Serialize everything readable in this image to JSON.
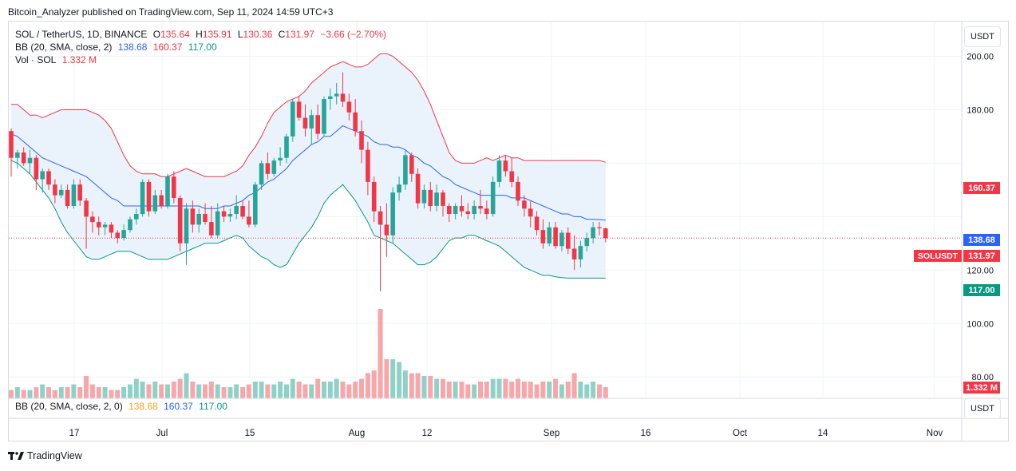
{
  "header": {
    "publisher_line": "Bitcoin_Analyzer published on TradingView.com, Sep 11, 2024 14:59 UTC+3"
  },
  "legend": {
    "symbol": "SOL / TetherUS, 1D, BINANCE",
    "o_label": "O",
    "o_value": "135.64",
    "h_label": "H",
    "h_value": "135.91",
    "l_label": "L",
    "l_value": "130.36",
    "c_label": "C",
    "c_value": "131.97",
    "change": "−3.66 (−2.70%)",
    "bb_label": "BB (20, SMA, close, 2)",
    "bb_basis": "138.68",
    "bb_upper": "160.37",
    "bb_lower": "117.00",
    "vol_label": "Vol · SOL",
    "vol_value": "1.332 M"
  },
  "lower_pane": {
    "legend_label": "BB (20, SMA, close, 2, 0)",
    "basis": "138.68",
    "upper": "160.37",
    "lower": "117.00"
  },
  "currency_button": "USDT",
  "footer": {
    "brand": "TradingView"
  },
  "colors": {
    "up": "#26a69a",
    "down": "#f23645",
    "vol_up": "#8fd1c7",
    "vol_down": "#f7a6aa",
    "bb_basis": "#2962ff",
    "bb_upper": "#f23645",
    "bb_lower": "#089981",
    "bb_fill": "#eaf2fb"
  },
  "chart_data": {
    "type": "candlestick",
    "symbol": "SOLUSDT",
    "y_ticks": [
      "200.00",
      "180.00",
      "120.00",
      "100.00",
      "80.00"
    ],
    "x_ticks": [
      "17",
      "Jul",
      "15",
      "Aug",
      "12",
      "Sep",
      "16",
      "Oct",
      "14",
      "Nov"
    ],
    "price_badges": [
      {
        "label": "",
        "value": "160.37",
        "color": "#f23645"
      },
      {
        "label": "",
        "value": "138.68",
        "color": "#2962ff"
      },
      {
        "label": "SOLUSDT",
        "value": "131.97",
        "color": "#f23645"
      },
      {
        "label": "",
        "value": "117.00",
        "color": "#089981"
      },
      {
        "label": "",
        "value": "1.332 M",
        "color": "#f23645"
      }
    ],
    "y_range": [
      72,
      213
    ],
    "candles": [
      [
        172.0,
        173.0,
        155.0,
        162.0
      ],
      [
        162.0,
        165.0,
        158.0,
        164.0
      ],
      [
        164.0,
        166.0,
        159.0,
        160.0
      ],
      [
        160.0,
        165.0,
        156.0,
        162.0
      ],
      [
        162.0,
        163.0,
        150.0,
        154.0
      ],
      [
        154.0,
        158.0,
        149.0,
        157.0
      ],
      [
        157.0,
        158.0,
        150.0,
        152.0
      ],
      [
        152.0,
        154.0,
        145.0,
        148.0
      ],
      [
        148.0,
        152.0,
        147.0,
        150.0
      ],
      [
        150.0,
        152.0,
        143.0,
        144.0
      ],
      [
        144.0,
        154.0,
        143.0,
        152.0
      ],
      [
        152.0,
        154.0,
        144.0,
        146.0
      ],
      [
        146.0,
        147.0,
        128.0,
        140.0
      ],
      [
        140.0,
        142.0,
        134.0,
        138.0
      ],
      [
        138.0,
        140.0,
        133.0,
        136.0
      ],
      [
        136.0,
        138.0,
        133.0,
        137.0
      ],
      [
        137.0,
        138.0,
        132.0,
        134.0
      ],
      [
        134.0,
        135.0,
        130.0,
        132.0
      ],
      [
        132.0,
        137.0,
        131.0,
        135.0
      ],
      [
        135.0,
        140.0,
        134.0,
        139.0
      ],
      [
        139.0,
        143.0,
        137.0,
        141.0
      ],
      [
        141.0,
        154.0,
        140.0,
        153.0
      ],
      [
        153.0,
        154.0,
        140.0,
        142.0
      ],
      [
        142.0,
        150.0,
        141.0,
        148.0
      ],
      [
        148.0,
        150.0,
        143.0,
        144.0
      ],
      [
        144.0,
        156.0,
        143.0,
        155.0
      ],
      [
        155.0,
        157.0,
        145.0,
        147.0
      ],
      [
        147.0,
        148.0,
        127.0,
        130.0
      ],
      [
        130.0,
        145.0,
        122.0,
        143.0
      ],
      [
        143.0,
        146.0,
        134.0,
        137.0
      ],
      [
        137.0,
        143.0,
        134.0,
        141.0
      ],
      [
        141.0,
        145.0,
        137.0,
        138.0
      ],
      [
        138.0,
        144.0,
        132.0,
        133.0
      ],
      [
        133.0,
        145.0,
        132.0,
        142.0
      ],
      [
        142.0,
        144.0,
        138.0,
        140.0
      ],
      [
        140.0,
        143.0,
        138.0,
        141.0
      ],
      [
        141.0,
        148.0,
        139.0,
        144.0
      ],
      [
        144.0,
        146.0,
        139.0,
        140.0
      ],
      [
        140.0,
        146.0,
        136.0,
        137.0
      ],
      [
        137.0,
        153.0,
        136.0,
        152.0
      ],
      [
        152.0,
        161.0,
        150.0,
        160.0
      ],
      [
        160.0,
        164.0,
        154.0,
        156.0
      ],
      [
        156.0,
        162.0,
        155.0,
        161.0
      ],
      [
        161.0,
        166.0,
        159.0,
        162.0
      ],
      [
        162.0,
        171.0,
        160.0,
        170.0
      ],
      [
        170.0,
        184.0,
        168.0,
        183.0
      ],
      [
        183.0,
        185.0,
        176.0,
        177.0
      ],
      [
        177.0,
        182.0,
        170.0,
        173.0
      ],
      [
        173.0,
        180.0,
        167.0,
        178.0
      ],
      [
        178.0,
        182.0,
        169.0,
        171.0
      ],
      [
        171.0,
        185.0,
        170.0,
        184.0
      ],
      [
        184.0,
        188.0,
        180.0,
        185.0
      ],
      [
        185.0,
        190.0,
        182.0,
        186.0
      ],
      [
        186.0,
        194.0,
        181.0,
        183.0
      ],
      [
        183.0,
        186.0,
        176.0,
        179.0
      ],
      [
        179.0,
        184.0,
        170.0,
        172.0
      ],
      [
        172.0,
        176.0,
        160.0,
        165.0
      ],
      [
        165.0,
        168.0,
        148.0,
        153.0
      ],
      [
        153.0,
        155.0,
        138.0,
        142.0
      ],
      [
        142.0,
        144.0,
        112.0,
        137.0
      ],
      [
        137.0,
        145.0,
        125.0,
        133.0
      ],
      [
        133.0,
        151.0,
        130.0,
        149.0
      ],
      [
        149.0,
        155.0,
        146.0,
        152.0
      ],
      [
        152.0,
        165.0,
        150.0,
        163.0
      ],
      [
        163.0,
        164.0,
        153.0,
        156.0
      ],
      [
        156.0,
        158.0,
        143.0,
        145.0
      ],
      [
        145.0,
        152.0,
        143.0,
        150.0
      ],
      [
        150.0,
        153.0,
        142.0,
        144.0
      ],
      [
        144.0,
        152.0,
        142.0,
        149.0
      ],
      [
        149.0,
        150.0,
        140.0,
        144.0
      ],
      [
        144.0,
        145.0,
        138.0,
        141.0
      ],
      [
        141.0,
        145.0,
        139.0,
        144.0
      ],
      [
        144.0,
        148.0,
        140.0,
        142.0
      ],
      [
        142.0,
        145.0,
        139.0,
        141.0
      ],
      [
        141.0,
        146.0,
        139.0,
        144.0
      ],
      [
        144.0,
        150.0,
        141.0,
        143.0
      ],
      [
        143.0,
        146.0,
        139.0,
        141.0
      ],
      [
        141.0,
        155.0,
        140.0,
        153.0
      ],
      [
        153.0,
        163.0,
        151.0,
        161.0
      ],
      [
        161.0,
        163.0,
        155.0,
        157.0
      ],
      [
        157.0,
        162.0,
        151.0,
        153.0
      ],
      [
        153.0,
        155.0,
        144.0,
        146.0
      ],
      [
        146.0,
        148.0,
        140.0,
        143.0
      ],
      [
        143.0,
        146.0,
        136.0,
        140.0
      ],
      [
        140.0,
        142.0,
        133.0,
        135.0
      ],
      [
        135.0,
        139.0,
        128.0,
        130.0
      ],
      [
        130.0,
        138.0,
        129.0,
        136.0
      ],
      [
        136.0,
        138.0,
        128.0,
        129.0
      ],
      [
        129.0,
        135.0,
        127.0,
        134.0
      ],
      [
        134.0,
        136.0,
        126.0,
        128.0
      ],
      [
        128.0,
        133.0,
        120.0,
        124.0
      ],
      [
        124.0,
        131.0,
        121.0,
        129.0
      ],
      [
        129.0,
        134.0,
        127.0,
        132.0
      ],
      [
        132.0,
        138.0,
        130.0,
        136.0
      ],
      [
        136.0,
        138.0,
        133.0,
        135.64
      ],
      [
        135.64,
        135.91,
        130.36,
        131.97
      ]
    ],
    "volume": [
      3,
      4,
      3,
      3,
      4,
      5,
      4,
      3,
      4,
      4,
      5,
      4,
      8,
      5,
      4,
      4,
      3,
      3,
      4,
      5,
      7,
      6,
      5,
      6,
      5,
      5,
      6,
      7,
      9,
      6,
      5,
      5,
      6,
      5,
      4,
      4,
      5,
      4,
      5,
      6,
      6,
      5,
      5,
      6,
      5,
      7,
      6,
      5,
      5,
      7,
      6,
      6,
      7,
      6,
      5,
      6,
      7,
      9,
      10,
      32,
      14,
      14,
      13,
      10,
      9,
      9,
      8,
      8,
      7,
      7,
      6,
      6,
      6,
      5,
      5,
      6,
      6,
      7,
      7,
      7,
      6,
      7,
      6,
      6,
      5,
      6,
      6,
      7,
      5,
      6,
      9,
      6,
      5,
      6,
      5,
      4
    ],
    "vol_range": [
      0,
      32
    ],
    "bb_upper": [
      182,
      182,
      180,
      178,
      178,
      177,
      178,
      179,
      180,
      180,
      180,
      180,
      180,
      179,
      178,
      176,
      173,
      168,
      163,
      159,
      157,
      156,
      156,
      156,
      155,
      155,
      156,
      157,
      158,
      157,
      156,
      155,
      155,
      155,
      155,
      156,
      157,
      159,
      163,
      166,
      170,
      175,
      179,
      181,
      183,
      184,
      185,
      187,
      190,
      192,
      194,
      196,
      197,
      198,
      197,
      196,
      196,
      197,
      199,
      201,
      201,
      200,
      198,
      196,
      194,
      191,
      187,
      182,
      176,
      170,
      164,
      161,
      160,
      160,
      160,
      161,
      162,
      161,
      162,
      163,
      162,
      162,
      161,
      161,
      161,
      161,
      161,
      161,
      161,
      161,
      161,
      161,
      161,
      161,
      161,
      160.37
    ],
    "bb_basis": [
      171,
      170,
      168,
      166,
      164,
      162,
      161,
      160,
      159,
      158,
      157,
      156,
      155,
      153,
      151,
      149,
      147,
      146,
      144,
      144,
      144,
      144,
      144,
      144,
      144,
      144,
      144,
      144,
      144,
      144,
      144,
      143,
      143,
      143,
      144,
      144,
      145,
      146,
      148,
      149,
      151,
      153,
      154,
      156,
      158,
      161,
      163,
      165,
      167,
      168,
      170,
      170,
      172,
      174,
      173,
      172,
      171,
      170,
      168,
      167,
      167,
      166,
      166,
      165,
      163,
      162,
      160,
      159,
      157,
      155,
      154,
      152,
      151,
      150,
      149,
      148,
      148,
      148,
      148,
      148,
      147,
      147,
      147,
      146,
      145,
      144,
      143,
      142,
      141,
      141,
      140,
      140,
      139,
      139,
      138.9,
      138.68
    ],
    "bb_lower": [
      161,
      160,
      158,
      156,
      153,
      150,
      147,
      143,
      138,
      134,
      131,
      128,
      125,
      124,
      124,
      125,
      126,
      127,
      127,
      127,
      126,
      125,
      124,
      124,
      124,
      124,
      125,
      126,
      127,
      128,
      129,
      130,
      130,
      130,
      131,
      132,
      133,
      132,
      129,
      127,
      125,
      124,
      122,
      121,
      122,
      126,
      130,
      133,
      136,
      140,
      145,
      148,
      150,
      152,
      149,
      146,
      142,
      138,
      133,
      132,
      131,
      130,
      128,
      126,
      124,
      122,
      122,
      123,
      125,
      128,
      131,
      132,
      132,
      133,
      133,
      132,
      131,
      130,
      129,
      127,
      125,
      123,
      121,
      120,
      119,
      118,
      118,
      117.5,
      117.2,
      117,
      117,
      117,
      117,
      117,
      117,
      117
    ]
  }
}
